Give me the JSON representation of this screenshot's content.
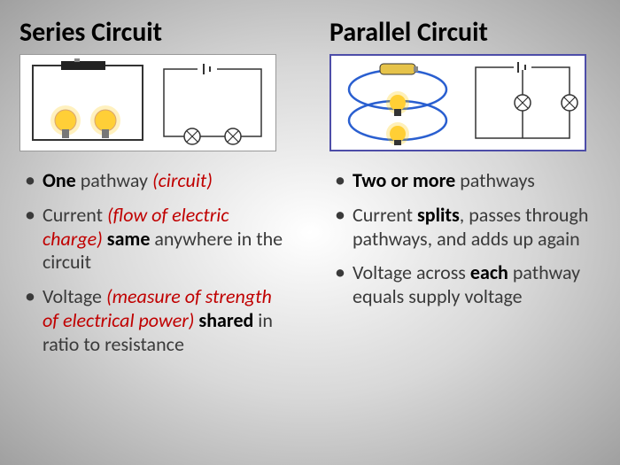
{
  "left": {
    "title": "Series Circuit",
    "bullets": [
      {
        "html": "<span class='b'>One</span> pathway <span class='r'>(circuit)</span>"
      },
      {
        "html": "Current <span class='r'>(flow of electric charge)</span> <span class='b'>same</span> anywhere in the circuit"
      },
      {
        "html": "Voltage <span class='r'>(measure of strength of electrical power)</span> <span class='b'>shared</span> in ratio to resistance"
      }
    ]
  },
  "right": {
    "title": "Parallel Circuit",
    "bullets": [
      {
        "html": "<span class='b'>Two or more</span> pathways"
      },
      {
        "html": "Current <span class='b'>splits</span>, passes through pathways, and adds up again"
      },
      {
        "html": "Voltage across <span class='b'>each</span> pathway equals supply voltage"
      }
    ]
  },
  "colors": {
    "wire_blue": "#2a5fd0",
    "wire_black": "#333",
    "bulb_yellow": "#ffd24a",
    "bulb_glow": "#ffb300",
    "battery_dark": "#222",
    "battery_top": "#888"
  }
}
